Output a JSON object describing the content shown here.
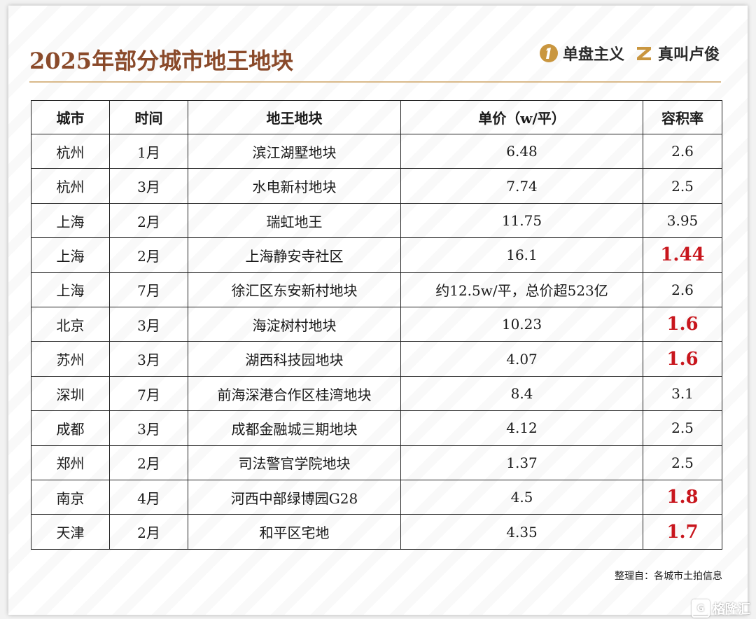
{
  "header": {
    "title": "2025年部分城市地王地块",
    "brands": [
      {
        "name": "单盘主义",
        "icon": "numeral-one-circle-icon"
      },
      {
        "name": "真叫卢俊",
        "icon": "letter-z-icon"
      }
    ]
  },
  "table": {
    "columns": [
      "城市",
      "时间",
      "地王地块",
      "单价（w/平）",
      "容积率"
    ],
    "rows": [
      {
        "city": "杭州",
        "month": "1月",
        "plot": "滨江湖墅地块",
        "price": "6.48",
        "far": "2.6",
        "highlight": false
      },
      {
        "city": "杭州",
        "month": "3月",
        "plot": "水电新村地块",
        "price": "7.74",
        "far": "2.5",
        "highlight": false
      },
      {
        "city": "上海",
        "month": "2月",
        "plot": "瑞虹地王",
        "price": "11.75",
        "far": "3.95",
        "highlight": false
      },
      {
        "city": "上海",
        "month": "2月",
        "plot": "上海静安寺社区",
        "price": "16.1",
        "far": "1.44",
        "highlight": true
      },
      {
        "city": "上海",
        "month": "7月",
        "plot": "徐汇区东安新村地块",
        "price": "约12.5w/平，总价超523亿",
        "far": "2.6",
        "highlight": false
      },
      {
        "city": "北京",
        "month": "3月",
        "plot": "海淀树村地块",
        "price": "10.23",
        "far": "1.6",
        "highlight": true
      },
      {
        "city": "苏州",
        "month": "3月",
        "plot": "湖西科技园地块",
        "price": "4.07",
        "far": "1.6",
        "highlight": true
      },
      {
        "city": "深圳",
        "month": "7月",
        "plot": "前海深港合作区桂湾地块",
        "price": "8.4",
        "far": "3.1",
        "highlight": false
      },
      {
        "city": "成都",
        "month": "3月",
        "plot": "成都金融城三期地块",
        "price": "4.12",
        "far": "2.5",
        "highlight": false
      },
      {
        "city": "郑州",
        "month": "2月",
        "plot": "司法警官学院地块",
        "price": "1.37",
        "far": "2.5",
        "highlight": false
      },
      {
        "city": "南京",
        "month": "4月",
        "plot": "河西中部绿博园G28",
        "price": "4.5",
        "far": "1.8",
        "highlight": true
      },
      {
        "city": "天津",
        "month": "2月",
        "plot": "和平区宅地",
        "price": "4.35",
        "far": "1.7",
        "highlight": true
      }
    ]
  },
  "source": "整理自：各城市土拍信息",
  "watermark": {
    "text": "格隆汇",
    "icon": "g-logo-icon"
  },
  "colors": {
    "title": "#8a4a2a",
    "highlight": "#c8161d",
    "divider": "#d9b98a",
    "brand_gold": "#c9963f"
  }
}
